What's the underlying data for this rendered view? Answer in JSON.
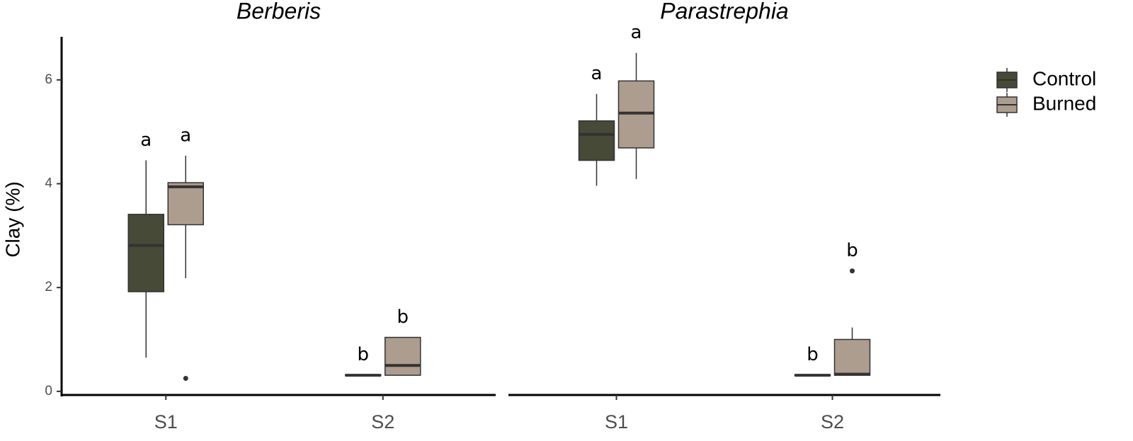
{
  "chart_data": {
    "type": "box",
    "ylabel": "Clay (%)",
    "ylim": [
      -0.07,
      6.83
    ],
    "yticks": [
      0,
      2,
      4,
      6
    ],
    "categories": [
      "S1",
      "S2"
    ],
    "series": [
      {
        "name": "Control",
        "color": "#464a36"
      },
      {
        "name": "Burned",
        "color": "#ad9d8f"
      }
    ],
    "facets": [
      {
        "title": "Berberis",
        "data": [
          [
            {
              "whislo": 0.65,
              "q1": 1.92,
              "med": 2.81,
              "q3": 3.41,
              "whishi": 4.45,
              "outliers": [],
              "letter": "a"
            },
            {
              "whislo": 0.3,
              "q1": 0.3,
              "med": 0.31,
              "q3": 0.32,
              "whishi": 0.32,
              "outliers": [],
              "letter": "b"
            }
          ],
          [
            {
              "whislo": 2.18,
              "q1": 3.21,
              "med": 3.94,
              "q3": 4.02,
              "whishi": 4.54,
              "outliers": [
                0.25
              ],
              "letter": "a"
            },
            {
              "whislo": 0.31,
              "q1": 0.31,
              "med": 0.5,
              "q3": 1.04,
              "whishi": 1.04,
              "outliers": [],
              "letter": "b"
            }
          ]
        ]
      },
      {
        "title": "Parastrephia",
        "data": [
          [
            {
              "whislo": 3.96,
              "q1": 4.45,
              "med": 4.95,
              "q3": 5.21,
              "whishi": 5.73,
              "outliers": [],
              "letter": "a"
            },
            {
              "whislo": 0.3,
              "q1": 0.3,
              "med": 0.31,
              "q3": 0.32,
              "whishi": 0.32,
              "outliers": [],
              "letter": "b"
            }
          ],
          [
            {
              "whislo": 4.09,
              "q1": 4.69,
              "med": 5.36,
              "q3": 5.98,
              "whishi": 6.52,
              "outliers": [],
              "letter": "a"
            },
            {
              "whislo": 0.31,
              "q1": 0.31,
              "med": 0.33,
              "q3": 1.0,
              "whishi": 1.23,
              "outliers": [
                2.32
              ],
              "letter": "b"
            }
          ]
        ]
      }
    ]
  }
}
